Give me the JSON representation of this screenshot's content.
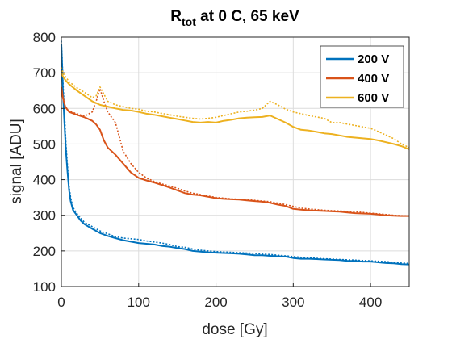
{
  "chart_data": {
    "type": "line",
    "title": {
      "main": "R",
      "sub": "tot",
      "rest": " at 0 C, 65 keV"
    },
    "xlabel": "dose [Gy]",
    "ylabel": "signal [ADU]",
    "xlim": [
      0,
      450
    ],
    "ylim": [
      100,
      800
    ],
    "xticks": [
      "0",
      "100",
      "200",
      "300",
      "400"
    ],
    "yticks": [
      "100",
      "200",
      "300",
      "400",
      "500",
      "600",
      "700",
      "800"
    ],
    "grid": true,
    "legend_position": "top-right",
    "series": [
      {
        "name": "200 V",
        "color": "#0072BD",
        "solid": [
          [
            0,
            780
          ],
          [
            1,
            720
          ],
          [
            2,
            650
          ],
          [
            4,
            560
          ],
          [
            6,
            480
          ],
          [
            8,
            420
          ],
          [
            10,
            370
          ],
          [
            12,
            340
          ],
          [
            15,
            315
          ],
          [
            20,
            300
          ],
          [
            25,
            285
          ],
          [
            30,
            275
          ],
          [
            40,
            262
          ],
          [
            50,
            250
          ],
          [
            60,
            242
          ],
          [
            70,
            236
          ],
          [
            80,
            230
          ],
          [
            90,
            226
          ],
          [
            100,
            222
          ],
          [
            110,
            220
          ],
          [
            120,
            218
          ],
          [
            130,
            214
          ],
          [
            140,
            212
          ],
          [
            150,
            208
          ],
          [
            160,
            205
          ],
          [
            170,
            200
          ],
          [
            180,
            198
          ],
          [
            190,
            196
          ],
          [
            200,
            195
          ],
          [
            210,
            194
          ],
          [
            220,
            193
          ],
          [
            230,
            192
          ],
          [
            240,
            190
          ],
          [
            250,
            188
          ],
          [
            260,
            188
          ],
          [
            270,
            186
          ],
          [
            280,
            185
          ],
          [
            290,
            184
          ],
          [
            300,
            180
          ],
          [
            310,
            178
          ],
          [
            320,
            178
          ],
          [
            330,
            177
          ],
          [
            340,
            176
          ],
          [
            350,
            175
          ],
          [
            360,
            174
          ],
          [
            370,
            172
          ],
          [
            380,
            172
          ],
          [
            390,
            170
          ],
          [
            400,
            170
          ],
          [
            410,
            168
          ],
          [
            420,
            166
          ],
          [
            430,
            165
          ],
          [
            440,
            163
          ],
          [
            450,
            162
          ]
        ],
        "dotted": [
          [
            0,
            790
          ],
          [
            1,
            740
          ],
          [
            2,
            680
          ],
          [
            4,
            590
          ],
          [
            6,
            500
          ],
          [
            8,
            435
          ],
          [
            10,
            380
          ],
          [
            12,
            350
          ],
          [
            15,
            322
          ],
          [
            20,
            305
          ],
          [
            25,
            292
          ],
          [
            30,
            280
          ],
          [
            40,
            268
          ],
          [
            50,
            256
          ],
          [
            60,
            248
          ],
          [
            70,
            240
          ],
          [
            80,
            236
          ],
          [
            90,
            234
          ],
          [
            100,
            232
          ],
          [
            110,
            228
          ],
          [
            120,
            225
          ],
          [
            130,
            222
          ],
          [
            140,
            218
          ],
          [
            150,
            212
          ],
          [
            160,
            210
          ],
          [
            170,
            205
          ],
          [
            180,
            202
          ],
          [
            190,
            200
          ],
          [
            200,
            198
          ],
          [
            210,
            197
          ],
          [
            220,
            196
          ],
          [
            230,
            195
          ],
          [
            240,
            194
          ],
          [
            250,
            193
          ],
          [
            260,
            191
          ],
          [
            270,
            190
          ],
          [
            280,
            188
          ],
          [
            290,
            186
          ],
          [
            300,
            184
          ],
          [
            310,
            182
          ],
          [
            320,
            181
          ],
          [
            330,
            179
          ],
          [
            340,
            178
          ],
          [
            350,
            177
          ],
          [
            360,
            176
          ],
          [
            370,
            175
          ],
          [
            380,
            174
          ],
          [
            390,
            173
          ],
          [
            400,
            172
          ],
          [
            410,
            171
          ],
          [
            420,
            170
          ],
          [
            430,
            168
          ],
          [
            440,
            166
          ],
          [
            450,
            165
          ]
        ]
      },
      {
        "name": "400 V",
        "color": "#D95319",
        "solid": [
          [
            0,
            660
          ],
          [
            2,
            630
          ],
          [
            5,
            605
          ],
          [
            10,
            590
          ],
          [
            20,
            582
          ],
          [
            30,
            575
          ],
          [
            40,
            565
          ],
          [
            45,
            555
          ],
          [
            50,
            540
          ],
          [
            55,
            510
          ],
          [
            60,
            490
          ],
          [
            70,
            470
          ],
          [
            80,
            445
          ],
          [
            90,
            420
          ],
          [
            100,
            405
          ],
          [
            110,
            398
          ],
          [
            120,
            392
          ],
          [
            130,
            385
          ],
          [
            140,
            378
          ],
          [
            150,
            370
          ],
          [
            160,
            362
          ],
          [
            170,
            358
          ],
          [
            180,
            356
          ],
          [
            190,
            352
          ],
          [
            200,
            348
          ],
          [
            210,
            346
          ],
          [
            220,
            345
          ],
          [
            230,
            344
          ],
          [
            240,
            342
          ],
          [
            250,
            340
          ],
          [
            260,
            338
          ],
          [
            270,
            335
          ],
          [
            280,
            330
          ],
          [
            290,
            326
          ],
          [
            300,
            318
          ],
          [
            310,
            316
          ],
          [
            320,
            314
          ],
          [
            330,
            313
          ],
          [
            340,
            312
          ],
          [
            350,
            311
          ],
          [
            360,
            310
          ],
          [
            370,
            308
          ],
          [
            380,
            306
          ],
          [
            390,
            305
          ],
          [
            400,
            304
          ],
          [
            410,
            302
          ],
          [
            420,
            300
          ],
          [
            430,
            299
          ],
          [
            440,
            298
          ],
          [
            450,
            298
          ]
        ],
        "dotted": [
          [
            0,
            655
          ],
          [
            2,
            628
          ],
          [
            5,
            605
          ],
          [
            10,
            592
          ],
          [
            20,
            585
          ],
          [
            30,
            578
          ],
          [
            40,
            590
          ],
          [
            45,
            620
          ],
          [
            50,
            655
          ],
          [
            55,
            620
          ],
          [
            60,
            590
          ],
          [
            65,
            575
          ],
          [
            70,
            560
          ],
          [
            75,
            520
          ],
          [
            80,
            480
          ],
          [
            90,
            445
          ],
          [
            100,
            420
          ],
          [
            110,
            405
          ],
          [
            120,
            395
          ],
          [
            130,
            388
          ],
          [
            140,
            382
          ],
          [
            150,
            376
          ],
          [
            160,
            368
          ],
          [
            170,
            362
          ],
          [
            180,
            358
          ],
          [
            190,
            354
          ],
          [
            200,
            350
          ],
          [
            210,
            348
          ],
          [
            220,
            346
          ],
          [
            230,
            345
          ],
          [
            240,
            344
          ],
          [
            250,
            342
          ],
          [
            260,
            340
          ],
          [
            270,
            338
          ],
          [
            280,
            334
          ],
          [
            290,
            330
          ],
          [
            300,
            325
          ],
          [
            310,
            320
          ],
          [
            320,
            318
          ],
          [
            330,
            316
          ],
          [
            340,
            314
          ],
          [
            350,
            313
          ],
          [
            360,
            312
          ],
          [
            370,
            311
          ],
          [
            380,
            310
          ],
          [
            390,
            308
          ],
          [
            400,
            306
          ],
          [
            410,
            304
          ],
          [
            420,
            302
          ],
          [
            430,
            300
          ],
          [
            440,
            299
          ],
          [
            450,
            298
          ]
        ]
      },
      {
        "name": "600 V",
        "color": "#EDB120",
        "solid": [
          [
            0,
            700
          ],
          [
            2,
            690
          ],
          [
            5,
            680
          ],
          [
            10,
            668
          ],
          [
            20,
            650
          ],
          [
            30,
            635
          ],
          [
            40,
            620
          ],
          [
            50,
            610
          ],
          [
            60,
            605
          ],
          [
            70,
            600
          ],
          [
            80,
            596
          ],
          [
            90,
            594
          ],
          [
            100,
            590
          ],
          [
            110,
            585
          ],
          [
            120,
            582
          ],
          [
            130,
            578
          ],
          [
            140,
            574
          ],
          [
            150,
            570
          ],
          [
            160,
            566
          ],
          [
            170,
            562
          ],
          [
            180,
            560
          ],
          [
            190,
            562
          ],
          [
            200,
            560
          ],
          [
            210,
            565
          ],
          [
            220,
            568
          ],
          [
            230,
            572
          ],
          [
            240,
            574
          ],
          [
            250,
            575
          ],
          [
            260,
            576
          ],
          [
            270,
            580
          ],
          [
            280,
            570
          ],
          [
            290,
            560
          ],
          [
            300,
            548
          ],
          [
            310,
            540
          ],
          [
            320,
            538
          ],
          [
            330,
            534
          ],
          [
            340,
            530
          ],
          [
            350,
            528
          ],
          [
            360,
            524
          ],
          [
            370,
            520
          ],
          [
            380,
            518
          ],
          [
            390,
            516
          ],
          [
            400,
            514
          ],
          [
            410,
            510
          ],
          [
            420,
            505
          ],
          [
            430,
            500
          ],
          [
            440,
            494
          ],
          [
            450,
            485
          ]
        ],
        "dotted": [
          [
            0,
            715
          ],
          [
            2,
            700
          ],
          [
            5,
            690
          ],
          [
            10,
            675
          ],
          [
            20,
            658
          ],
          [
            30,
            645
          ],
          [
            40,
            630
          ],
          [
            45,
            635
          ],
          [
            50,
            660
          ],
          [
            55,
            640
          ],
          [
            60,
            620
          ],
          [
            70,
            610
          ],
          [
            80,
            605
          ],
          [
            90,
            600
          ],
          [
            100,
            598
          ],
          [
            110,
            592
          ],
          [
            120,
            590
          ],
          [
            130,
            586
          ],
          [
            140,
            582
          ],
          [
            150,
            578
          ],
          [
            160,
            575
          ],
          [
            170,
            572
          ],
          [
            180,
            570
          ],
          [
            190,
            572
          ],
          [
            200,
            575
          ],
          [
            210,
            580
          ],
          [
            220,
            585
          ],
          [
            230,
            590
          ],
          [
            240,
            592
          ],
          [
            250,
            595
          ],
          [
            260,
            600
          ],
          [
            270,
            620
          ],
          [
            280,
            610
          ],
          [
            290,
            598
          ],
          [
            300,
            590
          ],
          [
            310,
            585
          ],
          [
            320,
            580
          ],
          [
            330,
            576
          ],
          [
            340,
            572
          ],
          [
            350,
            560
          ],
          [
            360,
            560
          ],
          [
            370,
            556
          ],
          [
            380,
            552
          ],
          [
            390,
            548
          ],
          [
            400,
            544
          ],
          [
            410,
            535
          ],
          [
            420,
            525
          ],
          [
            430,
            515
          ],
          [
            440,
            500
          ],
          [
            450,
            490
          ]
        ]
      }
    ]
  }
}
